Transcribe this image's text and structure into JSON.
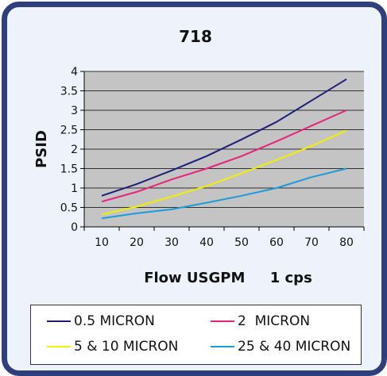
{
  "chart_data": {
    "type": "line",
    "title": "718",
    "xlabel": "Flow USGPM     1 cps",
    "ylabel": "PSID",
    "x": [
      10,
      20,
      30,
      40,
      50,
      60,
      70,
      80
    ],
    "xlim": [
      5,
      85
    ],
    "ylim": [
      0,
      4
    ],
    "xticks": [
      "10",
      "20",
      "30",
      "40",
      "50",
      "60",
      "70",
      "80"
    ],
    "yticks": [
      "0",
      "0.5",
      "1",
      "1.5",
      "2",
      "2.5",
      "3",
      "3.5",
      "4"
    ],
    "grid": true,
    "legend_position": "bottom",
    "series": [
      {
        "name": "0.5 MICRON",
        "color": "#1f1f7a",
        "values": [
          0.8,
          1.1,
          1.45,
          1.82,
          2.25,
          2.7,
          3.25,
          3.8
        ]
      },
      {
        "name": "2  MICRON",
        "color": "#e8237a",
        "values": [
          0.65,
          0.9,
          1.22,
          1.5,
          1.82,
          2.2,
          2.6,
          3.0
        ]
      },
      {
        "name": "5 & 10 MICRON",
        "color": "#f0f000",
        "values": [
          0.32,
          0.52,
          0.78,
          1.05,
          1.38,
          1.72,
          2.08,
          2.48
        ]
      },
      {
        "name": "25 & 40 MICRON",
        "color": "#1c9bd8",
        "values": [
          0.22,
          0.35,
          0.45,
          0.62,
          0.8,
          1.0,
          1.28,
          1.5
        ]
      }
    ]
  }
}
